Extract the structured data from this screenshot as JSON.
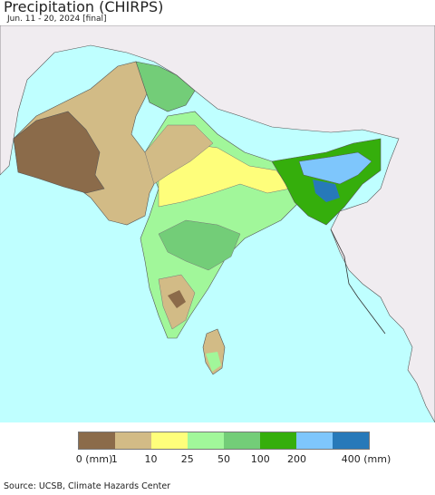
{
  "header": {
    "title": "Precipitation (CHIRPS)",
    "subtitle": "Jun. 11 - 20, 2024 [final]"
  },
  "map": {
    "colors": {
      "ocean": "#bfffff",
      "outside_land": "#f0ecf0",
      "border": "#333333"
    }
  },
  "legend": {
    "ticks": [
      "0 (mm)",
      "1",
      "10",
      "25",
      "50",
      "100",
      "200",
      "400 (mm)"
    ],
    "colors": [
      "#8b6b4a",
      "#d2bb86",
      "#fefe7b",
      "#a1f79a",
      "#73cd78",
      "#35ae0c",
      "#7ec6fc",
      "#2779b9"
    ]
  },
  "footer": {
    "source": "Source: UCSB, Climate Hazards Center"
  }
}
